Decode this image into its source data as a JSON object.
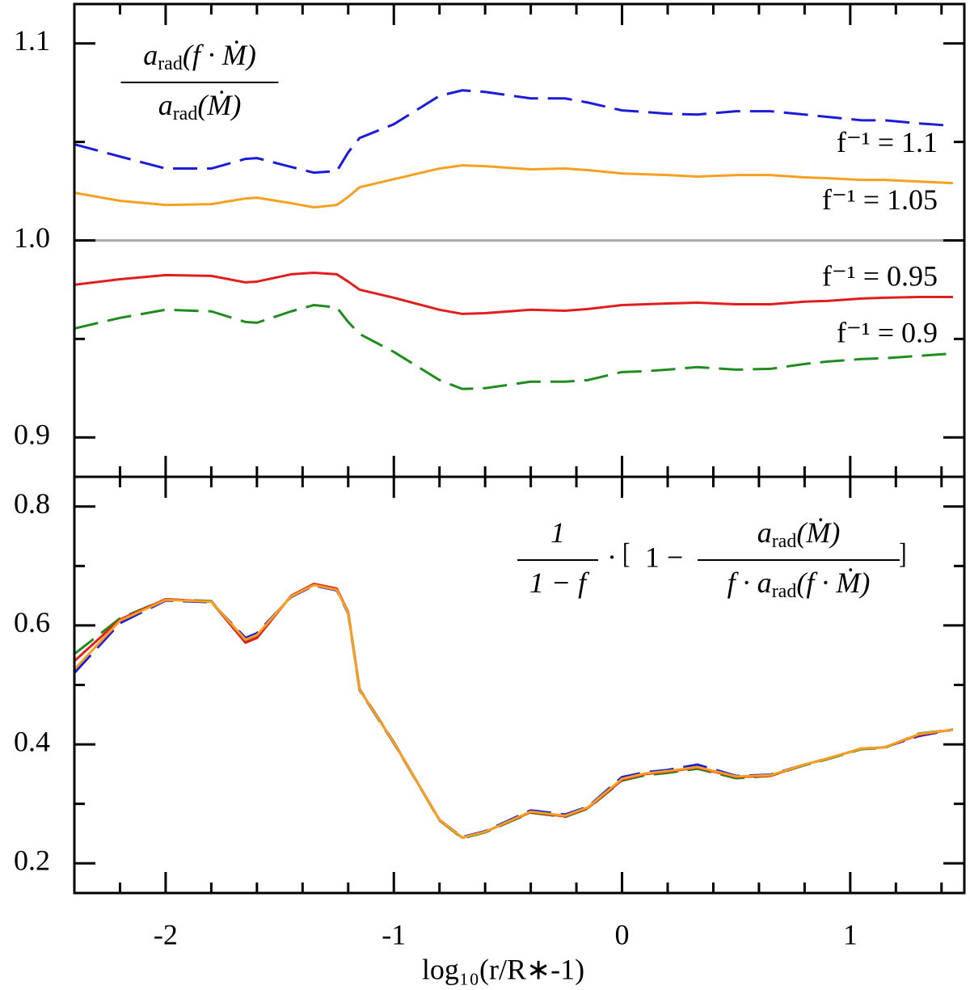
{
  "chart_data": [
    {
      "type": "line",
      "x": [
        -2.4,
        -2.2,
        -2.0,
        -1.8,
        -1.65,
        -1.6,
        -1.45,
        -1.35,
        -1.25,
        -1.2,
        -1.15,
        -1.0,
        -0.8,
        -0.7,
        -0.6,
        -0.4,
        -0.25,
        -0.15,
        0,
        0.1,
        0.2,
        0.33,
        0.5,
        0.65,
        0.8,
        0.9,
        1.05,
        1.15,
        1.3,
        1.45
      ],
      "series": [
        {
          "name": "f⁻¹ = 1.1",
          "color": "#1c1cd8",
          "dashed": true,
          "values": [
            1.0488,
            1.0426,
            1.0365,
            1.0365,
            1.0414,
            1.0418,
            1.0373,
            1.0344,
            1.0352,
            1.0447,
            1.052,
            1.059,
            1.0734,
            1.0762,
            1.0754,
            1.0721,
            1.0721,
            1.07,
            1.066,
            1.0652,
            1.0643,
            1.0639,
            1.0656,
            1.0656,
            1.0639,
            1.0627,
            1.061,
            1.061,
            1.0594,
            1.0582
          ]
        },
        {
          "name": "f⁻¹ = 1.05",
          "color": "#f5a020",
          "dashed": false,
          "values": [
            1.0242,
            1.0201,
            1.018,
            1.0184,
            1.0213,
            1.0217,
            1.0189,
            1.0168,
            1.018,
            1.0221,
            1.027,
            1.0311,
            1.0365,
            1.0381,
            1.0377,
            1.0361,
            1.0365,
            1.0357,
            1.034,
            1.0336,
            1.0332,
            1.0324,
            1.0332,
            1.0332,
            1.032,
            1.0316,
            1.0307,
            1.0307,
            1.0299,
            1.0291
          ]
        },
        {
          "name": "f⁻¹ = 0.95",
          "color": "#e01e1e",
          "dashed": false,
          "values": [
            0.9775,
            0.9803,
            0.9824,
            0.982,
            0.9787,
            0.9791,
            0.9828,
            0.9836,
            0.9828,
            0.9791,
            0.975,
            0.9709,
            0.9648,
            0.9627,
            0.9631,
            0.9648,
            0.9643,
            0.9652,
            0.9672,
            0.9676,
            0.968,
            0.9684,
            0.9676,
            0.9676,
            0.9689,
            0.9693,
            0.9705,
            0.9709,
            0.9713,
            0.9713
          ]
        },
        {
          "name": "f⁻¹ = 0.9",
          "color": "#1e8c1e",
          "dashed": true,
          "values": [
            0.9553,
            0.9607,
            0.9648,
            0.964,
            0.9586,
            0.9582,
            0.964,
            0.9672,
            0.966,
            0.9586,
            0.9525,
            0.9434,
            0.9291,
            0.9246,
            0.925,
            0.9283,
            0.9283,
            0.9291,
            0.9332,
            0.9336,
            0.9344,
            0.9357,
            0.9344,
            0.9348,
            0.9373,
            0.9385,
            0.9398,
            0.9402,
            0.9414,
            0.9426
          ]
        }
      ],
      "xlim": [
        -2.4,
        1.5
      ],
      "ylim": [
        0.88,
        1.12
      ],
      "xticks": [
        -2,
        -1,
        0,
        1
      ],
      "xticks_minor": [
        -2.2,
        -1.8,
        -1.6,
        -1.4,
        -1.2,
        -0.8,
        -0.6,
        -0.4,
        -0.2,
        0.2,
        0.4,
        0.6,
        0.8,
        1.2,
        1.4
      ],
      "show_xticklabels": false,
      "yticks": [
        0.9,
        {
          "value": 1,
          "label": "1.0"
        },
        1.1
      ],
      "yticks_minor": [
        0.95,
        1.05
      ],
      "reference_line": 1,
      "annotation": {
        "numerator": [
          "a",
          "rad",
          "(f · Ṁ)"
        ],
        "denominator": [
          "a",
          "rad",
          "(Ṁ)"
        ]
      }
    },
    {
      "type": "line",
      "x": [
        -2.4,
        -2.2,
        -2.0,
        -1.8,
        -1.65,
        -1.6,
        -1.45,
        -1.35,
        -1.25,
        -1.2,
        -1.15,
        -1.0,
        -0.8,
        -0.7,
        -0.6,
        -0.4,
        -0.25,
        -0.15,
        0,
        0.1,
        0.2,
        0.33,
        0.5,
        0.65,
        0.8,
        0.9,
        1.05,
        1.15,
        1.3,
        1.45
      ],
      "series": [
        {
          "color": "#1c1cd8",
          "dashed": true,
          "values": [
            0.52,
            0.604,
            0.642,
            0.639,
            0.579,
            0.587,
            0.648,
            0.667,
            0.659,
            0.62,
            0.491,
            0.402,
            0.273,
            0.244,
            0.254,
            0.289,
            0.282,
            0.295,
            0.345,
            0.353,
            0.357,
            0.366,
            0.347,
            0.349,
            0.366,
            0.376,
            0.393,
            0.395,
            0.414,
            0.425
          ]
        },
        {
          "color": "#1e8c1e",
          "dashed": true,
          "values": [
            0.552,
            0.612,
            0.644,
            0.641,
            0.574,
            0.581,
            0.65,
            0.669,
            0.661,
            0.622,
            0.493,
            0.404,
            0.272,
            0.242,
            0.252,
            0.285,
            0.278,
            0.292,
            0.339,
            0.348,
            0.352,
            0.359,
            0.343,
            0.347,
            0.365,
            0.375,
            0.392,
            0.394,
            0.418,
            0.425
          ]
        },
        {
          "color": "#e01e1e",
          "dashed": false,
          "values": [
            0.54,
            0.61,
            0.644,
            0.64,
            0.571,
            0.579,
            0.65,
            0.67,
            0.662,
            0.622,
            0.492,
            0.403,
            0.273,
            0.243,
            0.253,
            0.286,
            0.279,
            0.293,
            0.34,
            0.35,
            0.354,
            0.361,
            0.345,
            0.347,
            0.366,
            0.376,
            0.393,
            0.395,
            0.416,
            0.425
          ]
        },
        {
          "color": "#f5a020",
          "dashed": false,
          "values": [
            0.526,
            0.608,
            0.643,
            0.64,
            0.576,
            0.584,
            0.649,
            0.668,
            0.66,
            0.621,
            0.492,
            0.403,
            0.273,
            0.243,
            0.253,
            0.287,
            0.28,
            0.294,
            0.342,
            0.351,
            0.355,
            0.362,
            0.346,
            0.348,
            0.366,
            0.376,
            0.393,
            0.395,
            0.417,
            0.425
          ]
        }
      ],
      "xlim": [
        -2.4,
        1.5
      ],
      "ylim": [
        0.15,
        0.85
      ],
      "xticks": [
        -2,
        -1,
        0,
        1
      ],
      "xticks_minor": [
        -2.2,
        -1.8,
        -1.6,
        -1.4,
        -1.2,
        -0.8,
        -0.6,
        -0.4,
        -0.2,
        0.2,
        0.4,
        0.6,
        0.8,
        1.2,
        1.4
      ],
      "show_xticklabels": true,
      "xlabel": "log₁₀(r/R∗-1)",
      "yticks": [
        0.2,
        0.4,
        0.6,
        0.8
      ],
      "yticks_minor": [
        0.3,
        0.5,
        0.7
      ],
      "annotation": {
        "factor": {
          "numerator": [
            "1"
          ],
          "denominator": [
            "1 − f"
          ]
        },
        "dot": "·",
        "bracket_open": "[",
        "one_minus": "1 −",
        "fraction": {
          "numerator": [
            "a",
            "rad",
            "(Ṁ)"
          ],
          "denominator": [
            "f · a",
            "rad",
            "(f · Ṁ)"
          ]
        },
        "bracket_close": "]"
      }
    }
  ]
}
